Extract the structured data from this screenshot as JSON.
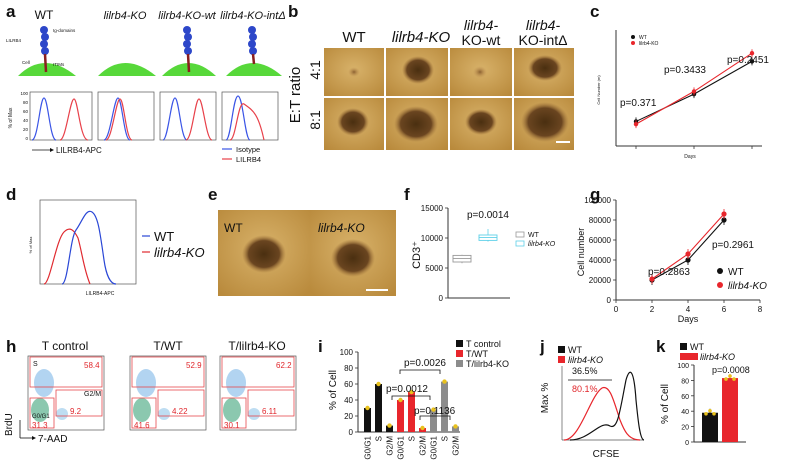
{
  "panel_labels": [
    "a",
    "b",
    "c",
    "d",
    "e",
    "f",
    "g",
    "h",
    "i",
    "j",
    "k"
  ],
  "panel_a": {
    "groups": [
      {
        "name": "WT",
        "italic": false
      },
      {
        "name": "lilrb4-KO",
        "italic": true
      },
      {
        "name": "lilrb4-KO-wt",
        "italic": true
      },
      {
        "name": "lilrb4-KO-intΔ",
        "italic": true
      }
    ],
    "diagram_labels": {
      "receptor": "LILRB4",
      "ig": "Ig-domains",
      "itim": "ITIMs",
      "cell": "Cell"
    },
    "y_label": "% of Max",
    "y_ticks": [
      "100",
      "80",
      "60",
      "40",
      "20",
      "0"
    ],
    "x_label": "LILRB4-APC",
    "legend": [
      {
        "name": "Isotype",
        "color": "#3b55e6"
      },
      {
        "name": "LILRB4",
        "color": "#e8414a"
      }
    ]
  },
  "panel_b": {
    "columns": [
      {
        "name": "WT",
        "italic": false
      },
      {
        "name": "lilrb4-KO",
        "italic": true
      },
      {
        "name": "lilrb4-KO-wt",
        "line1": "lilrb4-",
        "line2": "KO-wt",
        "italic": true
      },
      {
        "name": "lilrb4-KO-intΔ",
        "line1": "lilrb4-",
        "line2": "KO-intΔ",
        "italic": true
      }
    ],
    "axis_title": "E:T ratio",
    "rows": [
      "4:1",
      "8:1"
    ]
  },
  "panel_c": {
    "ylabel": "Cell Number (m)",
    "xlabel": "Days",
    "legend": [
      "WT",
      "lilrb4-KO"
    ],
    "p_values": [
      "p=0.371",
      "p=0.3433",
      "p=0.2451"
    ]
  },
  "panel_d": {
    "x_label": "LILRB4-APC",
    "y_label": "% of Max",
    "legend": [
      {
        "name": "WT",
        "color": "#2a47d6",
        "italic": false
      },
      {
        "name": "lilrb4-KO",
        "color": "#e02a30",
        "italic": true
      }
    ]
  },
  "panel_e": {
    "labels": [
      "WT",
      "lilrb4-KO"
    ]
  },
  "panel_f": {
    "y_label": "CD3⁺",
    "y_ticks": [
      "15000",
      "10000",
      "5000",
      "0"
    ],
    "p_value": "p=0.0014",
    "legend": [
      "WT",
      "lilrb4-KO"
    ]
  },
  "panel_h": {
    "columns": [
      "T control",
      "T/WT",
      "T/lilrb4-KO"
    ],
    "y_label": "BrdU",
    "x_label": "7-AAD",
    "gate_labels": [
      "S",
      "G2/M",
      "G0/G1"
    ],
    "values": [
      {
        "S": "58.4",
        "G2M": "9.2",
        "G0G1": "31.3"
      },
      {
        "S": "52.9",
        "G2M": "4.22",
        "G0G1": "41.6"
      },
      {
        "S": "62.2",
        "G2M": "6.11",
        "G0G1": "30.1"
      }
    ]
  },
  "panel_i": {
    "y_label": "% of Cell",
    "y_ticks": [
      "100",
      "80",
      "60",
      "40",
      "20",
      "0"
    ],
    "categories": [
      "G0/G1",
      "S",
      "G2/M",
      "G0/G1",
      "S",
      "G2/M",
      "G0/G1",
      "S",
      "G2/M"
    ],
    "legend": [
      {
        "name": "T control",
        "color": "#111111"
      },
      {
        "name": "T/WT",
        "color": "#e8262c"
      },
      {
        "name": "T/lilrb4-KO",
        "color": "#8c8c8c"
      }
    ],
    "p_values": [
      "p=0.0026",
      "p=0.0012",
      "p=0.1136"
    ]
  },
  "panel_j": {
    "y_label": "Max %",
    "x_label": "CFSE",
    "legend": [
      {
        "name": "WT",
        "color": "#111111"
      },
      {
        "name": "lilrb4-KO",
        "color": "#e8262c"
      }
    ],
    "values": [
      "36.5%",
      "80.1%"
    ]
  },
  "panel_k": {
    "y_label": "% of Cell",
    "y_ticks": [
      "100",
      "80",
      "60",
      "40",
      "20",
      "0"
    ],
    "legend": [
      {
        "name": "WT",
        "color": "#111111"
      },
      {
        "name": "lilrb4-KO",
        "color": "#e8262c"
      }
    ],
    "p_value": "p=0.0008"
  },
  "chart_data": [
    {
      "panel": "c",
      "type": "line",
      "xlabel": "Days",
      "ylabel": "Cell Number (m)",
      "x": [
        1,
        2,
        3
      ],
      "series": [
        {
          "name": "WT",
          "color": "#111111",
          "values": [
            0.18,
            0.38,
            0.62
          ]
        },
        {
          "name": "lilrb4-KO",
          "color": "#e8262c",
          "values": [
            0.16,
            0.4,
            0.68
          ]
        }
      ],
      "ylim": [
        0,
        0.85
      ]
    },
    {
      "panel": "f",
      "type": "box",
      "ylabel": "CD3⁺",
      "ylim": [
        0,
        15000
      ],
      "series": [
        {
          "name": "WT",
          "min": 5800,
          "q1": 6000,
          "median": 6600,
          "q3": 7100,
          "max": 7200
        },
        {
          "name": "lilrb4-KO",
          "min": 9400,
          "q1": 9600,
          "median": 10100,
          "q3": 10500,
          "max": 11500
        }
      ]
    },
    {
      "panel": "g",
      "type": "line",
      "xlabel": "Days",
      "ylabel": "Cell number",
      "x": [
        2,
        4,
        6
      ],
      "xlim": [
        0,
        8
      ],
      "ylim": [
        0,
        100000
      ],
      "yticks": [
        0,
        20000,
        40000,
        60000,
        80000,
        100000
      ],
      "xticks": [
        0,
        2,
        4,
        6,
        8
      ],
      "series": [
        {
          "name": "WT",
          "color": "#111111",
          "values": [
            20000,
            40000,
            80000
          ]
        },
        {
          "name": "lilrb4-KO",
          "color": "#e8262c",
          "values": [
            21000,
            46000,
            86000
          ]
        }
      ],
      "annotations": [
        "p=0.2961",
        "p=0.2863"
      ]
    },
    {
      "panel": "i",
      "type": "bar",
      "ylabel": "% of Cell",
      "ylim": [
        0,
        100
      ],
      "categories": [
        "G0/G1",
        "S",
        "G2/M",
        "G0/G1",
        "S",
        "G2/M",
        "G0/G1",
        "S",
        "G2/M"
      ],
      "values": [
        30,
        60,
        8,
        40,
        50,
        5,
        28,
        63,
        7
      ],
      "colors": [
        "#111111",
        "#111111",
        "#111111",
        "#e8262c",
        "#e8262c",
        "#e8262c",
        "#8c8c8c",
        "#8c8c8c",
        "#8c8c8c"
      ]
    },
    {
      "panel": "k",
      "type": "bar",
      "ylabel": "% of Cell",
      "ylim": [
        0,
        100
      ],
      "categories": [
        "WT",
        "lilrb4-KO"
      ],
      "values": [
        38,
        83
      ],
      "colors": [
        "#111111",
        "#e8262c"
      ]
    }
  ]
}
